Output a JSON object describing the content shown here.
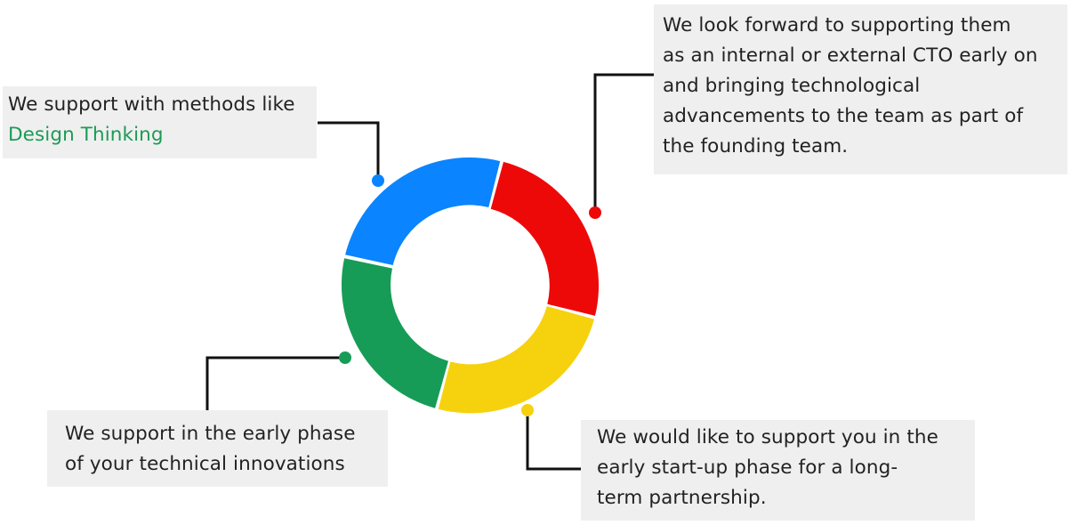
{
  "colors": {
    "blue": "#0A84FF",
    "red": "#EE0909",
    "yellow": "#F6D10E",
    "green": "#169C56",
    "connector": "#111111",
    "callout_background": "#EFEFEF",
    "highlight_text": "#1B9B55"
  },
  "ring_segments": [
    {
      "name": "blue",
      "color": "#0A84FF"
    },
    {
      "name": "red",
      "color": "#EE0909"
    },
    {
      "name": "yellow",
      "color": "#F6D10E"
    },
    {
      "name": "green",
      "color": "#169C56"
    }
  ],
  "callouts": {
    "top_left": {
      "line1": "We support with methods like",
      "highlight": "Design Thinking"
    },
    "top_right": {
      "lines": [
        "We look forward to supporting them",
        "as an internal or external CTO early on",
        "and bringing technological",
        "advancements to the team as part of",
        "the founding team."
      ]
    },
    "bottom_left": {
      "lines": [
        "We support in the early phase",
        "of your technical innovations"
      ]
    },
    "bottom_right": {
      "lines": [
        "We would like to support you in the",
        "early start-up phase for a long-",
        "term partnership."
      ]
    }
  }
}
